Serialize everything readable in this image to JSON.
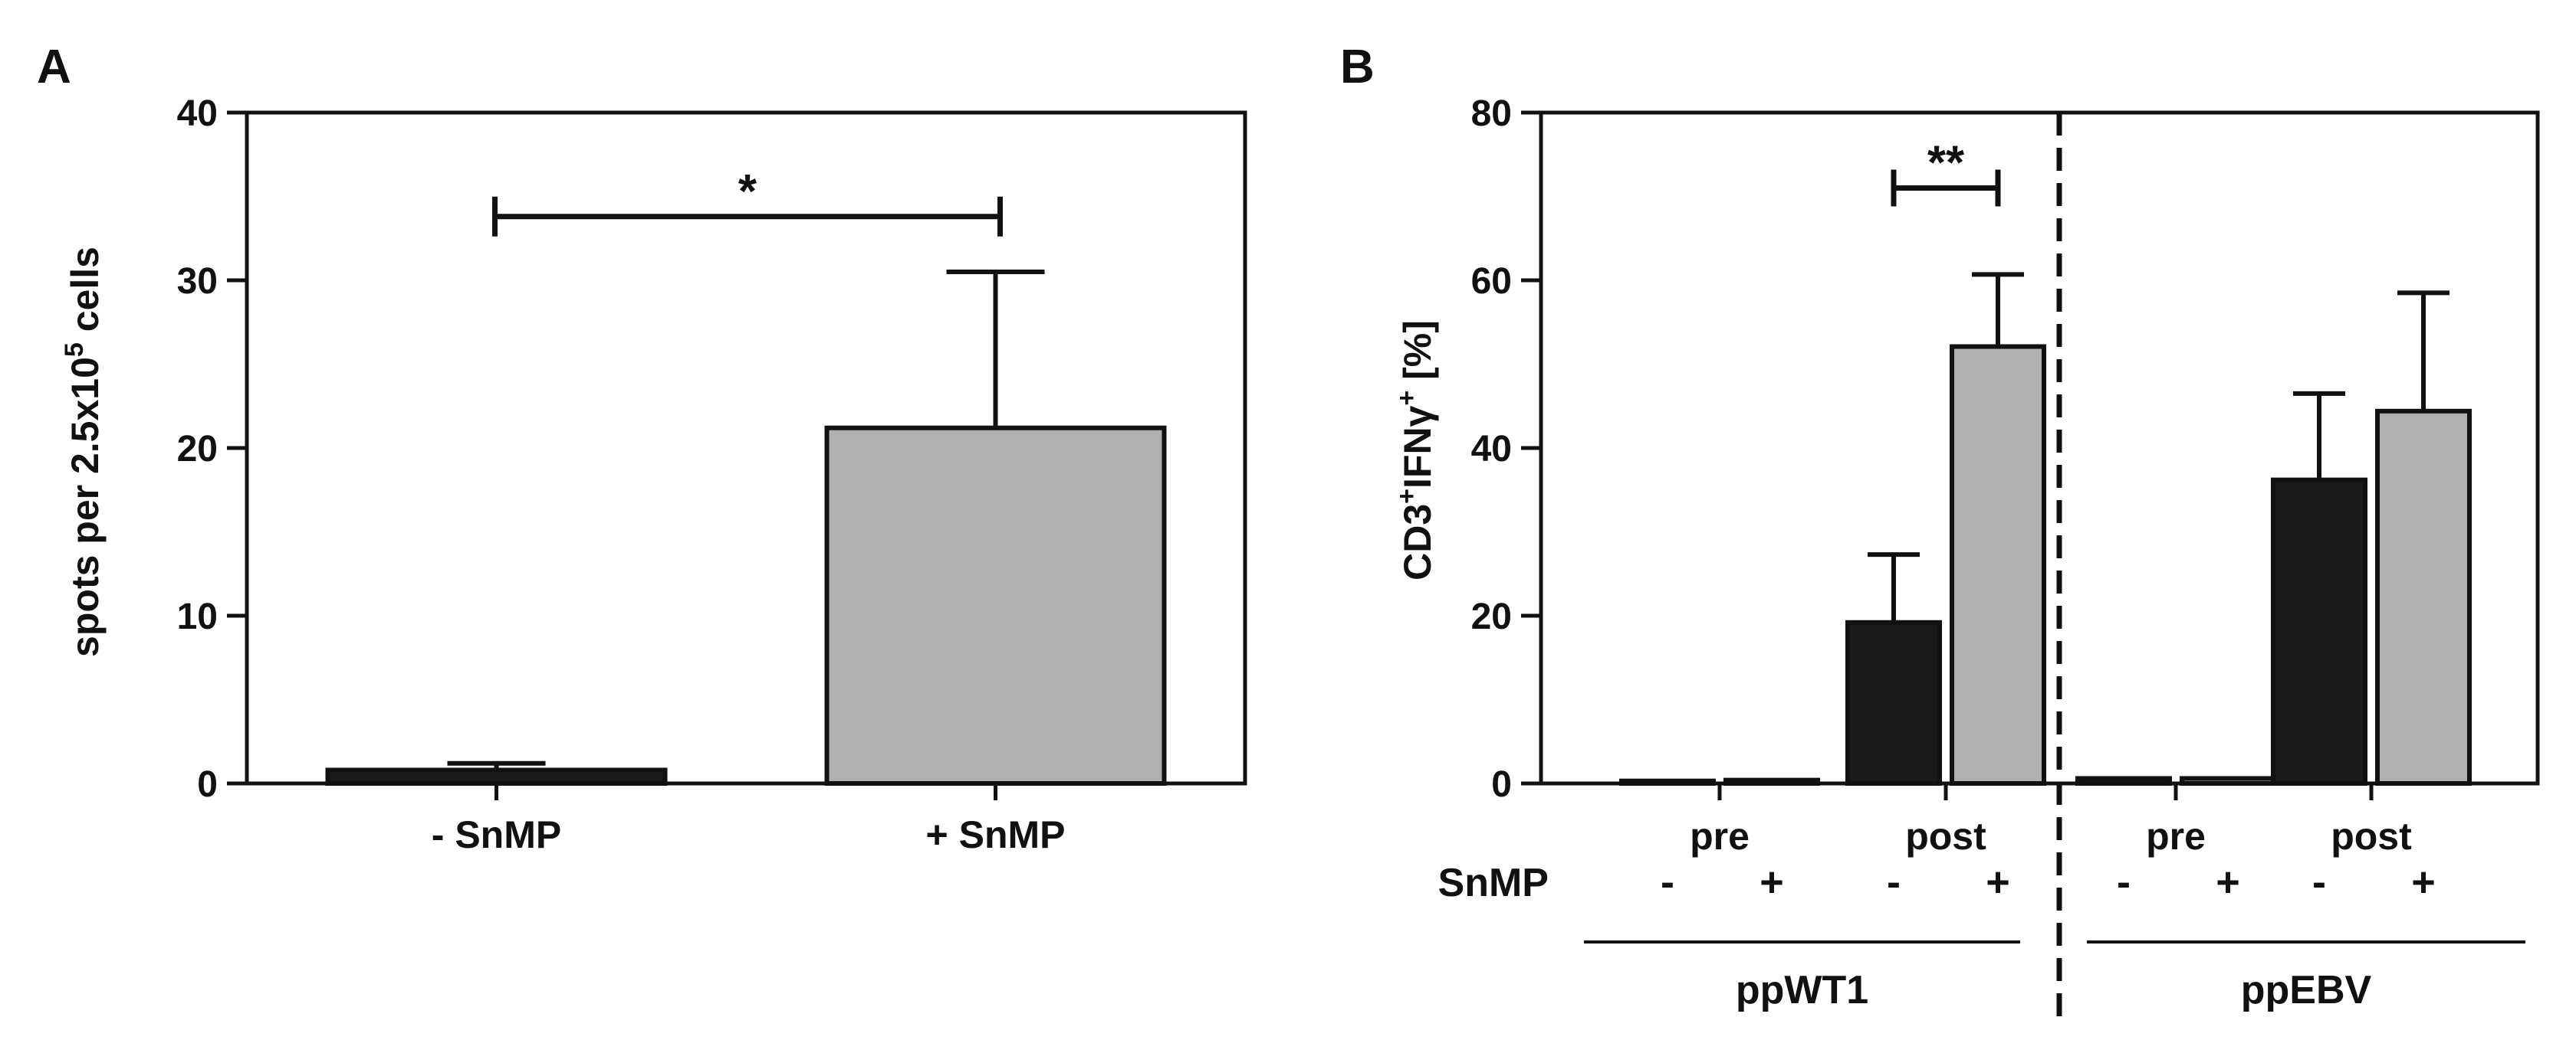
{
  "colors": {
    "black_bar": "#1a1a1a",
    "gray_bar": "#b0b0b0",
    "ink": "#111111"
  },
  "chart_data": [
    {
      "panel": "A",
      "type": "bar",
      "title": "",
      "xlabel": "",
      "ylabel_main": "spots per 2.5x10",
      "ylabel_sup": "5",
      "ylabel_end": " cells",
      "ylim": [
        0,
        40
      ],
      "yticks": [
        "0",
        "10",
        "20",
        "30",
        "40"
      ],
      "categories": [
        "- SnMP",
        "+ SnMP"
      ],
      "values": [
        0.8,
        21.2
      ],
      "errors": [
        0.4,
        9.3
      ],
      "fills": [
        "black",
        "gray"
      ],
      "significance": [
        {
          "from": 0,
          "to": 1,
          "label": "*",
          "y": 33.8
        }
      ]
    },
    {
      "panel": "B",
      "type": "bar",
      "title": "",
      "ylabel_parts": [
        "CD3",
        "+",
        "IFNγ",
        "+",
        " [%]"
      ],
      "ylim": [
        0,
        80
      ],
      "yticks": [
        "0",
        "20",
        "40",
        "60",
        "80"
      ],
      "x_row_label": "SnMP",
      "groups": [
        {
          "label": "ppWT1",
          "subgroups": [
            {
              "label": "pre",
              "bars": [
                {
                  "sign": "-",
                  "value": 0.3,
                  "error": 0,
                  "fill": "black"
                },
                {
                  "sign": "+",
                  "value": 0.4,
                  "error": 0,
                  "fill": "gray"
                }
              ]
            },
            {
              "label": "post",
              "bars": [
                {
                  "sign": "-",
                  "value": 19.2,
                  "error": 8.1,
                  "fill": "black"
                },
                {
                  "sign": "+",
                  "value": 52.1,
                  "error": 8.6,
                  "fill": "gray"
                }
              ]
            }
          ]
        },
        {
          "label": "ppEBV",
          "subgroups": [
            {
              "label": "pre",
              "bars": [
                {
                  "sign": "-",
                  "value": 0.6,
                  "error": 0,
                  "fill": "black"
                },
                {
                  "sign": "+",
                  "value": 0.6,
                  "error": 0,
                  "fill": "gray"
                }
              ]
            },
            {
              "label": "post",
              "bars": [
                {
                  "sign": "-",
                  "value": 36.2,
                  "error": 10.3,
                  "fill": "black"
                },
                {
                  "sign": "+",
                  "value": 44.4,
                  "error": 14.1,
                  "fill": "gray"
                }
              ]
            }
          ]
        }
      ],
      "significance": [
        {
          "group": 0,
          "subgroup": 1,
          "label": "**",
          "y": 71.0
        }
      ]
    }
  ]
}
